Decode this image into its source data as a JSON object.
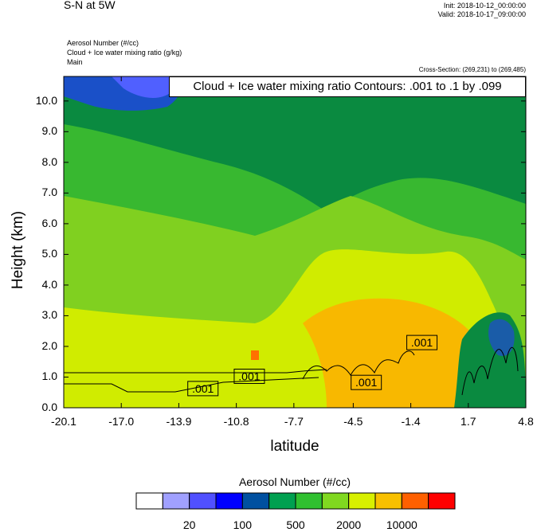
{
  "header": {
    "title": "S-N at 5W",
    "init": "Init: 2018-10-12_00:00:00",
    "valid": "Valid: 2018-10-17_09:00:00",
    "field1": "Aerosol Number   (#/cc)",
    "field2": "Cloud + Ice water mixing ratio   (g/kg)",
    "field3": "Main",
    "cross_section": "Cross-Section: (269,231) to (269,485)"
  },
  "chart_data": {
    "type": "heatmap",
    "title": "S-N at 5W",
    "xlabel": "latitude",
    "ylabel": "Height (km)",
    "xlim": [
      -20.1,
      4.8
    ],
    "ylim": [
      0.0,
      10.8
    ],
    "x_ticks": [
      "-20.1",
      "-17.0",
      "-13.9",
      "-10.8",
      "-7.7",
      "-4.5",
      "-1.4",
      "1.7",
      "4.8"
    ],
    "y_ticks": [
      "0.0",
      "1.0",
      "2.0",
      "3.0",
      "4.0",
      "5.0",
      "6.0",
      "7.0",
      "8.0",
      "9.0",
      "10.0"
    ],
    "contour_info": "Cloud + Ice water mixing ratio Contours: .001 to .1 by .099",
    "contour_labels": [
      {
        "text": ".001",
        "x": -12.6,
        "y": 0.6
      },
      {
        "text": ".001",
        "x": -10.1,
        "y": 1.0
      },
      {
        "text": ".001",
        "x": -3.8,
        "y": 0.8
      },
      {
        "text": ".001",
        "x": -0.8,
        "y": 2.1
      }
    ],
    "colorbar": {
      "title": "Aerosol Number  (#/cc)",
      "colors": [
        "#ffffff",
        "#a0a0ff",
        "#5050ff",
        "#0000ff",
        "#0050a0",
        "#00a050",
        "#30c030",
        "#80d820",
        "#d8f000",
        "#f8c000",
        "#ff6000",
        "#ff0000"
      ],
      "tick_labels": [
        "20",
        "100",
        "500",
        "2000",
        "10000"
      ]
    }
  },
  "colors": {
    "deep_green": "#0a8a40",
    "mid_green": "#38b830",
    "light_green": "#80d020",
    "yellow_green": "#d0ec00",
    "orange": "#f8b800",
    "blue": "#1a50c8",
    "light_blue": "#5060ff"
  }
}
